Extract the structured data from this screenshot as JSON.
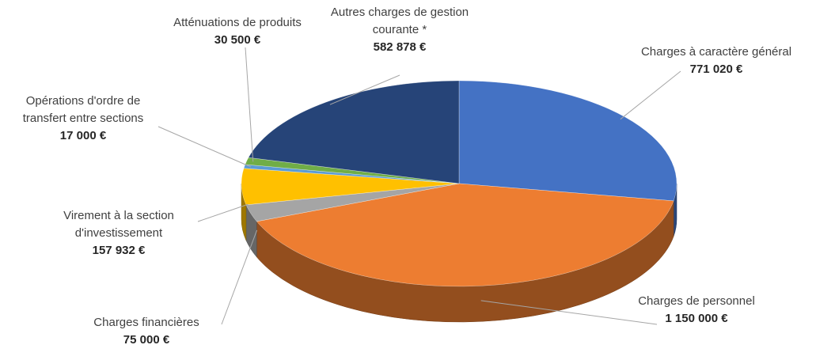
{
  "chart_data": {
    "type": "pie",
    "categories": [
      "Charges à caractère général",
      "Charges de personnel",
      "Charges financières",
      "Virement à la section d'investissement",
      "Opérations d'ordre de transfert entre sections",
      "Atténuations de produits",
      "Autres charges de gestion courante *"
    ],
    "values": [
      771020,
      1150000,
      75000,
      157932,
      17000,
      30500,
      582878
    ],
    "value_labels": [
      "771 020 €",
      "1 150 000 €",
      "75 000 €",
      "157 932 €",
      "17 000 €",
      "30 500 €",
      "582 878 €"
    ],
    "colors": [
      "#4472c4",
      "#ed7d31",
      "#a5a5a5",
      "#ffc000",
      "#5b9bd5",
      "#70ad47",
      "#264478"
    ]
  }
}
